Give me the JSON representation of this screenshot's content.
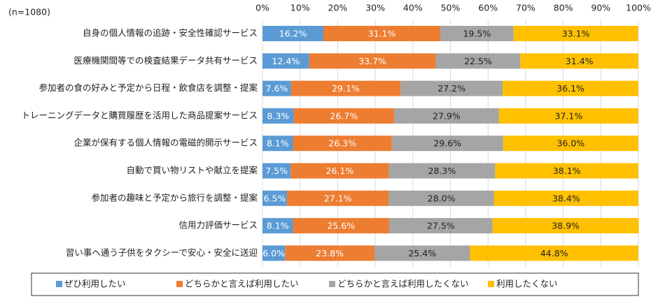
{
  "chart_data": {
    "type": "stacked-bar-horizontal",
    "annotation": "(n=1080)",
    "categories": [
      "自身の個人情報の追跡・安全性確認サービス",
      "医療機関間等での検査結果データ共有サービス",
      "参加者の食の好みと予定から日程・飲食店を調整・提案",
      "トレーニングデータと購買履歴を活用した商品提案サービス",
      "企業が保有する個人情報の電磁的開示サービス",
      "自動で買い物リストや献立を提案",
      "参加者の趣味と予定から旅行を調整・提案",
      "信用力評価サービス",
      "習い事へ通う子供をタクシーで安心・安全に送迎"
    ],
    "series": [
      {
        "name": "ぜひ利用したい",
        "color": "#5b9bd5",
        "values": [
          16.2,
          12.4,
          7.6,
          8.3,
          8.1,
          7.5,
          6.5,
          8.1,
          6.0
        ],
        "value_labels": [
          "16.2%",
          "12.4%",
          "7.6%",
          "8.3%",
          "8.1%",
          "7.5%",
          "6.5%",
          "8.1%",
          "6.0%"
        ]
      },
      {
        "name": "どちらかと言えば利用したい",
        "color": "#ed7d31",
        "values": [
          31.1,
          33.7,
          29.1,
          26.7,
          26.3,
          26.1,
          27.1,
          25.6,
          23.8
        ],
        "value_labels": [
          "31.1%",
          "33.7%",
          "29.1%",
          "26.7%",
          "26.3%",
          "26.1%",
          "27.1%",
          "25.6%",
          "23.8%"
        ]
      },
      {
        "name": "どちらかと言えば利用したくない",
        "color": "#a5a5a5",
        "values": [
          19.5,
          22.5,
          27.2,
          27.9,
          29.6,
          28.3,
          28.0,
          27.5,
          25.4
        ],
        "value_labels": [
          "19.5%",
          "22.5%",
          "27.2%",
          "27.9%",
          "29.6%",
          "28.3%",
          "28.0%",
          "27.5%",
          "25.4%"
        ]
      },
      {
        "name": "利用したくない",
        "color": "#ffc000",
        "values": [
          33.1,
          31.4,
          36.1,
          37.1,
          36.0,
          38.1,
          38.4,
          38.9,
          44.8
        ],
        "value_labels": [
          "33.1%",
          "31.4%",
          "36.1%",
          "37.1%",
          "36.0%",
          "38.1%",
          "38.4%",
          "38.9%",
          "44.8%"
        ]
      }
    ],
    "xlim": [
      0,
      100
    ],
    "xticks": [
      {
        "value": 0,
        "label": "0%"
      },
      {
        "value": 10,
        "label": "10%"
      },
      {
        "value": 20,
        "label": "20%"
      },
      {
        "value": 30,
        "label": "30%"
      },
      {
        "value": 40,
        "label": "40%"
      },
      {
        "value": 50,
        "label": "50%"
      },
      {
        "value": 60,
        "label": "60%"
      },
      {
        "value": 70,
        "label": "70%"
      },
      {
        "value": 80,
        "label": "80%"
      },
      {
        "value": 90,
        "label": "90%"
      },
      {
        "value": 100,
        "label": "100%"
      }
    ],
    "grid": true,
    "legend": "bottom"
  }
}
